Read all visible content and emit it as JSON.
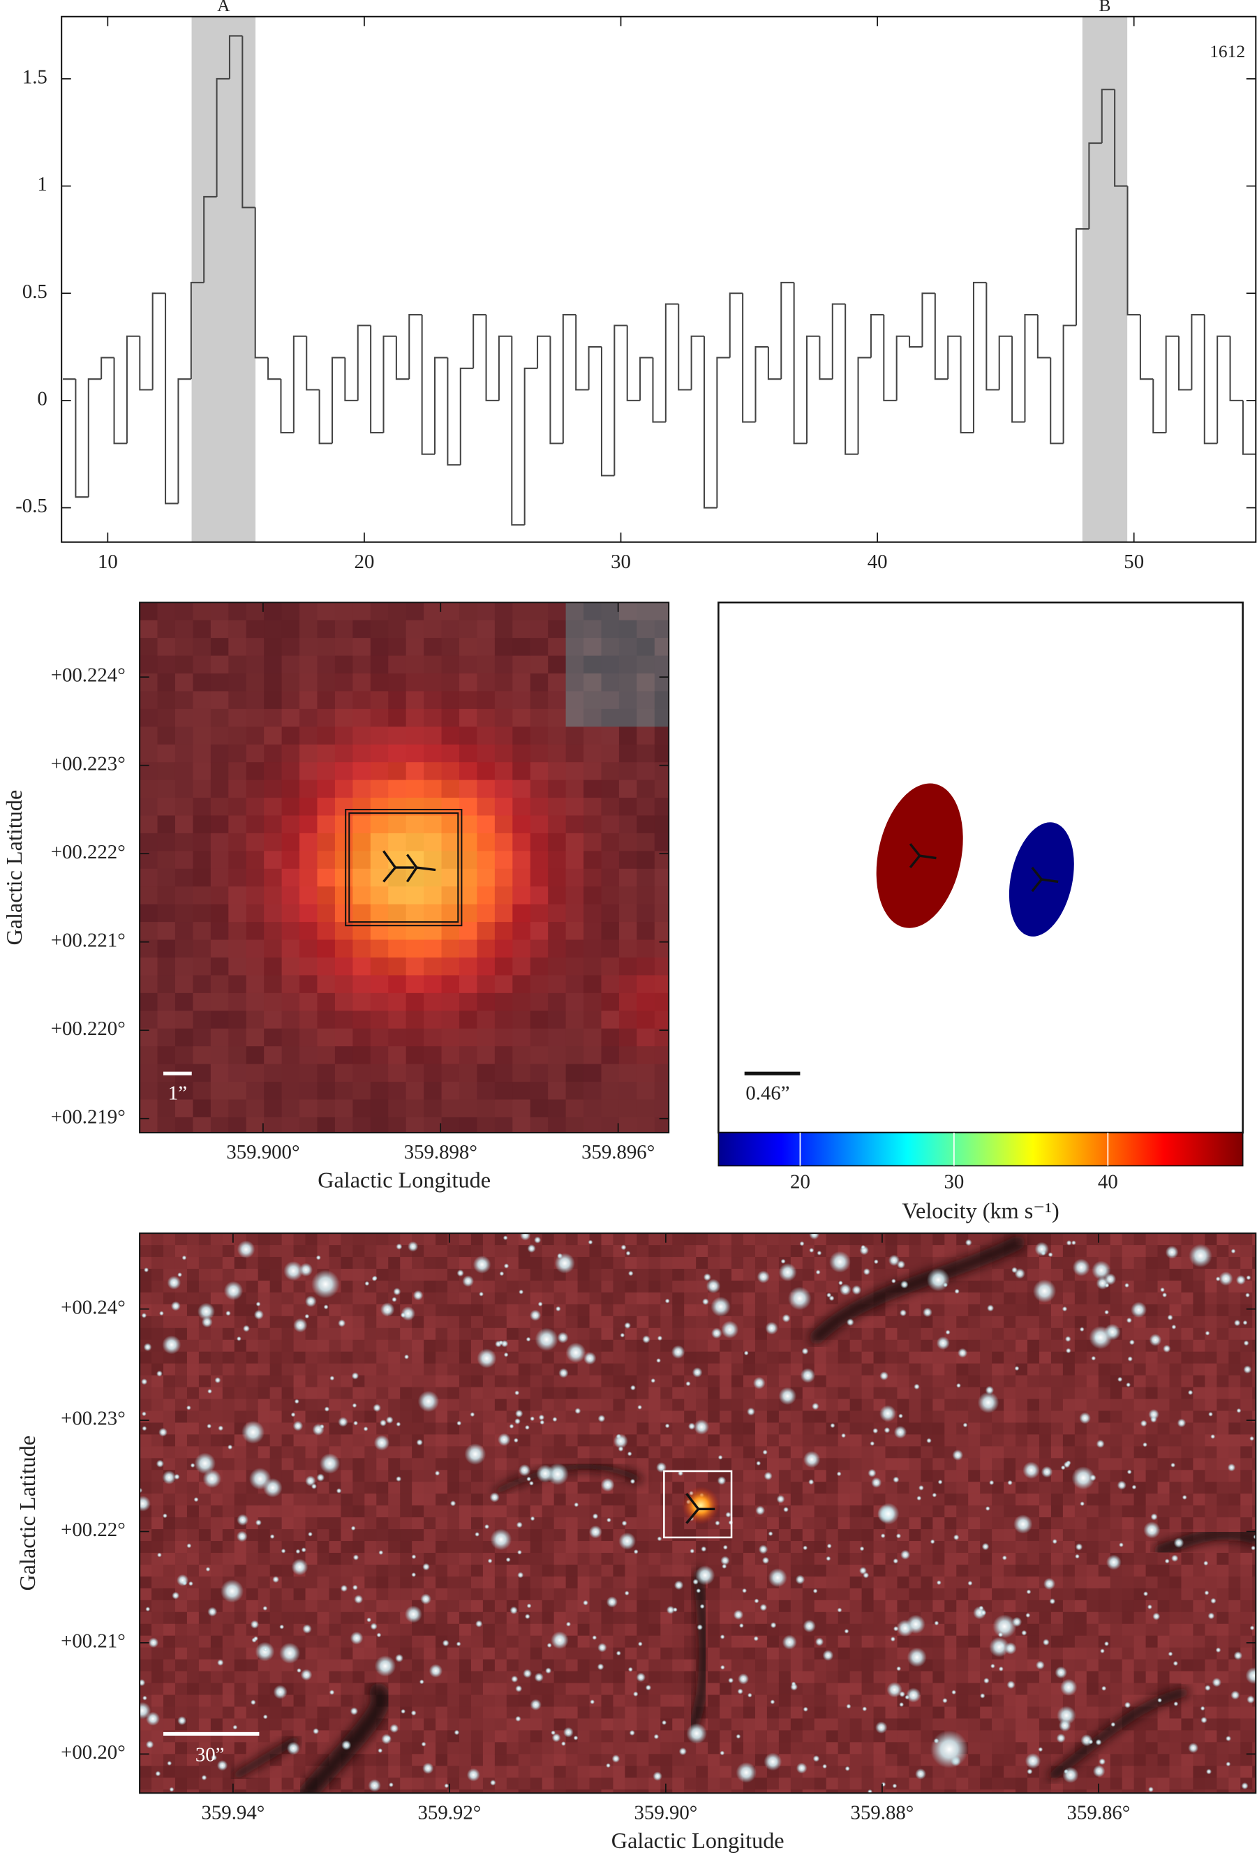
{
  "chart_data": [
    {
      "type": "step",
      "annotations": [
        "A",
        "B",
        "1612"
      ],
      "xlim": [
        8.2,
        54.75
      ],
      "ylim": [
        -0.66,
        1.79
      ],
      "xticks": [
        10,
        20,
        30,
        40,
        50
      ],
      "yticks": [
        -0.5,
        0,
        0.5,
        1,
        1.5
      ],
      "shaded": [
        [
          13.27,
          15.76
        ],
        [
          47.99,
          49.74
        ]
      ],
      "color": "#444444",
      "shade_color": "#cccccc",
      "x": [
        8.5,
        9,
        9.5,
        10,
        10.5,
        11,
        11.5,
        12,
        12.5,
        13,
        13.5,
        14,
        14.5,
        15,
        15.5,
        16,
        16.5,
        17,
        17.5,
        18,
        18.5,
        19,
        19.5,
        20,
        20.5,
        21,
        21.5,
        22,
        22.5,
        23,
        23.5,
        24,
        24.5,
        25,
        25.5,
        26,
        26.5,
        27,
        27.5,
        28,
        28.5,
        29,
        29.5,
        30,
        30.5,
        31,
        31.5,
        32,
        32.5,
        33,
        33.5,
        34,
        34.5,
        35,
        35.5,
        36,
        36.5,
        37,
        37.5,
        38,
        38.5,
        39,
        39.5,
        40,
        40.5,
        41,
        41.5,
        42,
        42.5,
        43,
        43.5,
        44,
        44.5,
        45,
        45.5,
        46,
        46.5,
        47,
        47.5,
        48,
        48.5,
        49,
        49.5,
        50,
        50.5,
        51,
        51.5,
        52,
        52.5,
        53,
        53.5,
        54,
        54.5
      ],
      "values": [
        0.1,
        -0.45,
        0.1,
        0.2,
        -0.2,
        0.3,
        0.05,
        0.5,
        -0.48,
        0.1,
        0.55,
        0.95,
        1.5,
        1.7,
        0.9,
        0.2,
        0.1,
        -0.15,
        0.3,
        0.05,
        -0.2,
        0.2,
        0,
        0.35,
        -0.15,
        0.3,
        0.1,
        0.4,
        -0.25,
        0.2,
        -0.3,
        0.15,
        0.4,
        0,
        0.3,
        -0.58,
        0.15,
        0.3,
        -0.2,
        0.4,
        0.05,
        0.25,
        -0.35,
        0.35,
        0,
        0.2,
        -0.1,
        0.45,
        0.05,
        0.3,
        -0.5,
        0.2,
        0.5,
        -0.1,
        0.25,
        0.1,
        0.55,
        -0.2,
        0.3,
        0.1,
        0.45,
        -0.25,
        0.2,
        0.4,
        0,
        0.3,
        0.25,
        0.5,
        0.1,
        0.3,
        -0.15,
        0.55,
        0.05,
        0.3,
        -0.1,
        0.4,
        0.2,
        -0.2,
        0.35,
        0.8,
        1.2,
        1.45,
        1,
        0.4,
        0.1,
        -0.15,
        0.3,
        0.05,
        0.4,
        -0.2,
        0.3,
        0,
        -0.25
      ]
    },
    {
      "type": "image",
      "xlabel": "Galactic Longitude",
      "ylabel": "Galactic Latitude",
      "scalebar": "1”",
      "xlim": [
        359.90139,
        359.89543
      ],
      "ylim": [
        0.21884,
        0.224845
      ],
      "xticks": [
        {
          "value": 359.9,
          "label": "359.900°"
        },
        {
          "value": 359.898,
          "label": "359.898°"
        },
        {
          "value": 359.896,
          "label": "359.896°"
        }
      ],
      "yticks": [
        {
          "value": 0.219,
          "label": "+00.219°"
        },
        {
          "value": 0.22,
          "label": "+00.220°"
        },
        {
          "value": 0.221,
          "label": "+00.221°"
        },
        {
          "value": 0.222,
          "label": "+00.222°"
        },
        {
          "value": 0.223,
          "label": "+00.223°"
        },
        {
          "value": 0.224,
          "label": "+00.224°"
        }
      ]
    },
    {
      "type": "velocity",
      "scalebar": "0.46”",
      "clabel": "Velocity (km s⁻¹)",
      "clim": [
        14.69,
        48.77
      ],
      "cticks": [
        20,
        30,
        40
      ],
      "spots": [
        {
          "velocity": 48,
          "color": "#8b0000"
        },
        {
          "velocity": 15,
          "color": "#00008b"
        }
      ]
    },
    {
      "type": "image",
      "xlabel": "Galactic Longitude",
      "ylabel": "Galactic Latitude",
      "scalebar": "30”",
      "xlim": [
        359.94863,
        359.84546
      ],
      "ylim": [
        0.19649,
        0.24681
      ],
      "xticks": [
        {
          "value": 359.94,
          "label": "359.94°"
        },
        {
          "value": 359.92,
          "label": "359.92°"
        },
        {
          "value": 359.9,
          "label": "359.90°"
        },
        {
          "value": 359.88,
          "label": "359.88°"
        },
        {
          "value": 359.86,
          "label": "359.86°"
        }
      ],
      "yticks": [
        {
          "value": 0.2,
          "label": "+00.20°"
        },
        {
          "value": 0.21,
          "label": "+00.21°"
        },
        {
          "value": 0.22,
          "label": "+00.22°"
        },
        {
          "value": 0.23,
          "label": "+00.23°"
        },
        {
          "value": 0.24,
          "label": "+00.24°"
        }
      ]
    }
  ]
}
